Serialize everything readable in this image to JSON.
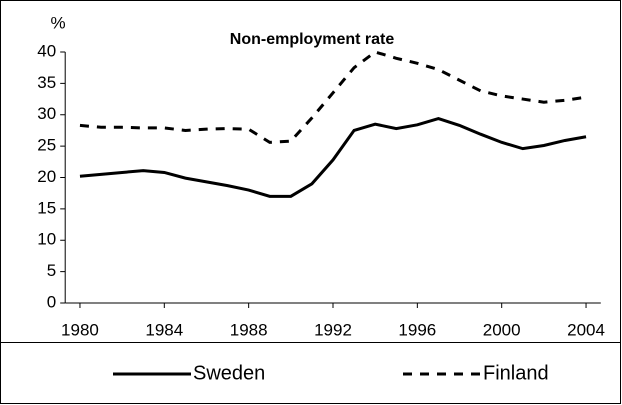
{
  "chart_data": {
    "type": "line",
    "title": "Non-employment rate",
    "y_label": "%",
    "x": [
      1980,
      1981,
      1982,
      1983,
      1984,
      1985,
      1986,
      1987,
      1988,
      1989,
      1990,
      1991,
      1992,
      1993,
      1994,
      1995,
      1996,
      1997,
      1998,
      1999,
      2000,
      2001,
      2002,
      2003,
      2004
    ],
    "series": [
      {
        "name": "Sweden",
        "color": "#000000",
        "dashed": false,
        "values": [
          20.2,
          20.5,
          20.8,
          21.1,
          20.8,
          19.9,
          19.3,
          18.7,
          18.0,
          17.0,
          17.0,
          19.0,
          22.8,
          27.5,
          28.5,
          27.8,
          28.4,
          29.4,
          28.3,
          26.9,
          25.6,
          24.6,
          25.1,
          25.9,
          26.5
        ]
      },
      {
        "name": "Finland",
        "color": "#000000",
        "dashed": true,
        "values": [
          28.3,
          28.0,
          28.0,
          27.9,
          27.9,
          27.5,
          27.7,
          27.8,
          27.7,
          25.6,
          25.8,
          29.5,
          33.5,
          37.5,
          40.0,
          39.0,
          38.2,
          37.2,
          35.5,
          33.8,
          33.0,
          32.5,
          32.0,
          32.3,
          32.8
        ]
      }
    ],
    "xlim": [
      1979.3,
      2004.7
    ],
    "xticks": [
      1980,
      1984,
      1988,
      1992,
      1996,
      2000,
      2004
    ],
    "ylim": [
      0,
      40
    ],
    "yticks": [
      0,
      5,
      10,
      15,
      20,
      25,
      30,
      35,
      40
    ],
    "grid": false
  }
}
